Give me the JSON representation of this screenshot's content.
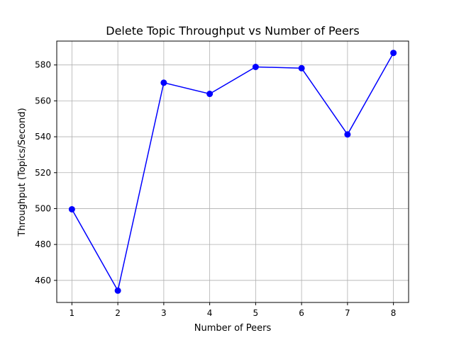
{
  "chart_data": {
    "type": "line",
    "title": "Delete Topic Throughput vs Number of Peers",
    "xlabel": "Number of Peers",
    "ylabel": "Throughput (Topics/Second)",
    "x": [
      1,
      2,
      3,
      4,
      5,
      6,
      7,
      8
    ],
    "series": [
      {
        "values": [
          499.6,
          454.3,
          570.1,
          563.9,
          578.9,
          578.2,
          541.3,
          586.7
        ]
      }
    ],
    "xlim": [
      0.67,
      8.33
    ],
    "ylim": [
      447.7,
      593.3
    ],
    "xticks": [
      1,
      2,
      3,
      4,
      5,
      6,
      7,
      8
    ],
    "yticks": [
      460,
      480,
      500,
      520,
      540,
      560,
      580
    ],
    "grid": true,
    "colors": {
      "line": "#0000ff",
      "marker": "#0000ff",
      "grid": "#b0b0b0",
      "axes": "#000000"
    }
  }
}
